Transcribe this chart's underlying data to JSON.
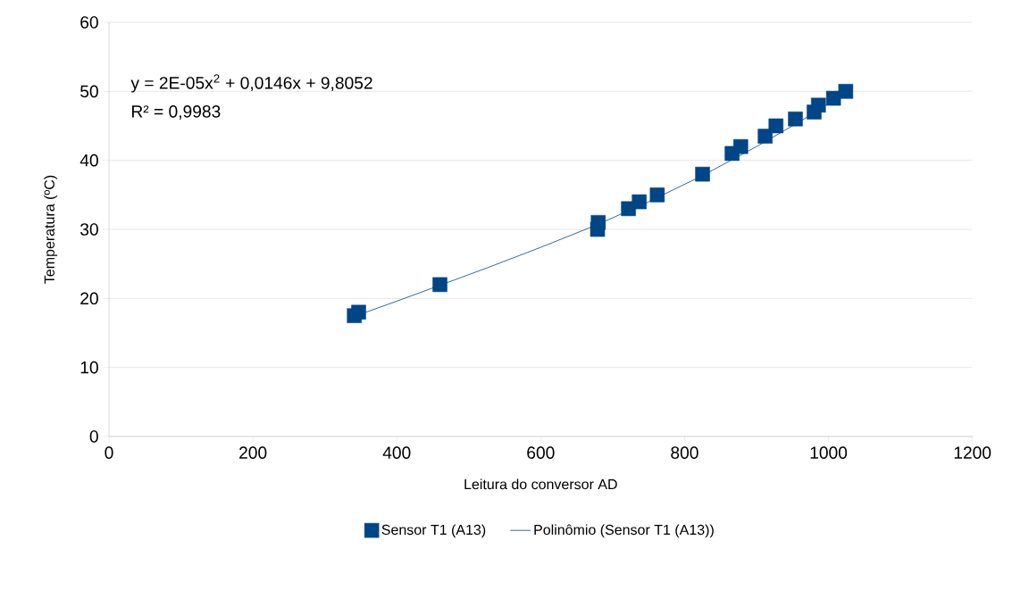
{
  "chart_data": {
    "type": "scatter",
    "xlabel": "Leitura do conversor AD",
    "ylabel": "Temperatura (ºC)",
    "xlim": [
      0,
      1200
    ],
    "xticks": [
      0,
      200,
      400,
      600,
      800,
      1000,
      1200
    ],
    "ylim": [
      0,
      60
    ],
    "yticks": [
      0,
      10,
      20,
      30,
      40,
      50,
      60
    ],
    "grid": "y",
    "legend": "bottom",
    "annotations": [
      "y = 2E-05x$^{2}$ + 0,0146x + 9,8052",
      "R² = 0,9983"
    ],
    "series": [
      {
        "name": "Sensor T1 (A13)",
        "marker": "square",
        "color": "#004586",
        "x": [
          341,
          347,
          460,
          679,
          680,
          722,
          737,
          762,
          825,
          866,
          878,
          912,
          927,
          954,
          980,
          986,
          1007,
          1024
        ],
        "values": [
          17.5,
          18,
          22,
          30,
          31,
          33,
          34,
          35,
          38,
          41,
          42,
          43.5,
          45,
          46,
          47,
          48,
          49,
          50
        ]
      },
      {
        "name": "Polinômio (Sensor T1 (A13))",
        "type": "line",
        "marker": "none",
        "color": "#004586",
        "x": [
          341,
          400,
          460,
          530,
          600,
          679,
          750,
          825,
          900,
          960,
          1024
        ],
        "values": [
          17.4,
          19.6,
          21.9,
          24.6,
          27.4,
          30.7,
          34.0,
          37.8,
          42.0,
          45.6,
          49.8
        ]
      }
    ]
  }
}
